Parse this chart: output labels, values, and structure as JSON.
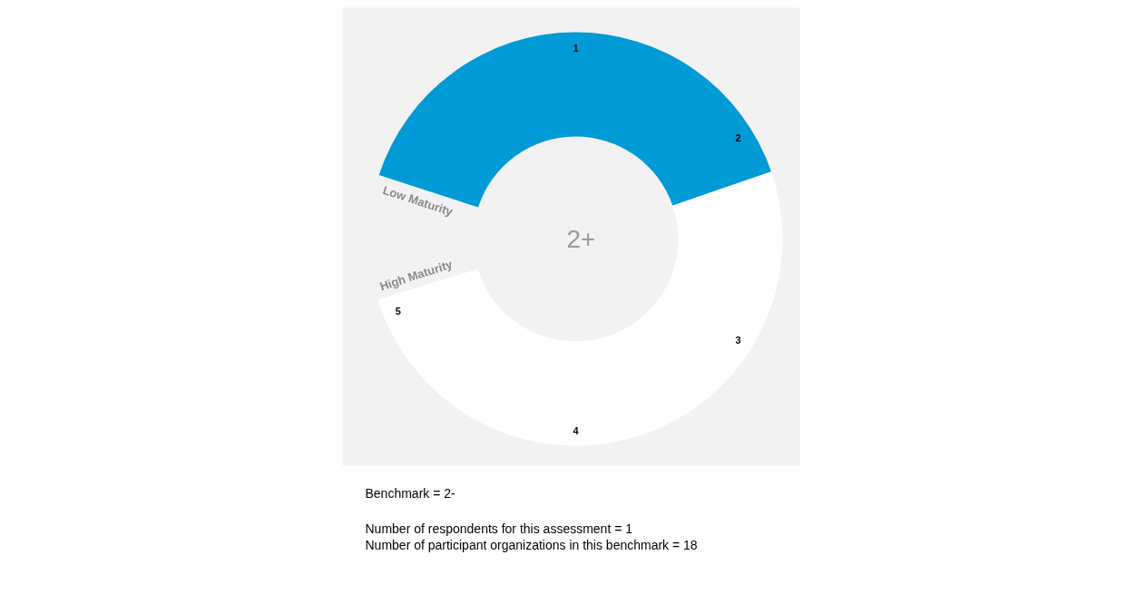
{
  "chart_data": {
    "type": "donut",
    "categories": [
      null,
      null
    ],
    "values": [
      44,
      56
    ],
    "colors": [
      "#009ad6",
      "#ffffff"
    ],
    "annotations": [
      "1",
      "2",
      "3",
      "4",
      "5",
      "Low Maturity",
      "High Maturity",
      "2+",
      "Benchmark = 2-",
      "Number of respondents for this assessment = 1",
      "Number of participant organizations in this benchmark = 18"
    ]
  }
}
